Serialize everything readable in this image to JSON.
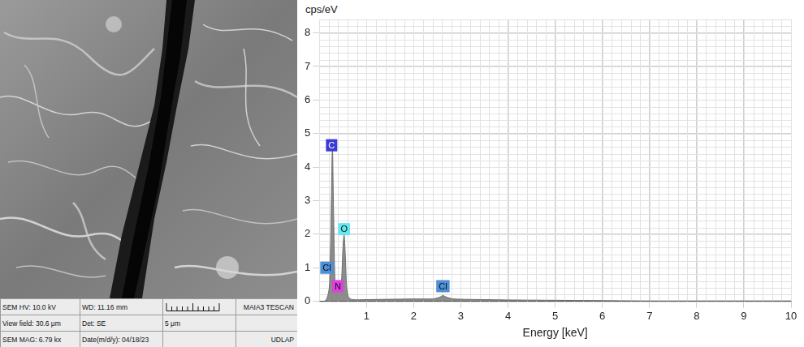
{
  "sem_image": {
    "info_bar": {
      "hv": "SEM HV: 10.0 kV",
      "wd": "WD: 11.16 mm",
      "instrument": "MAIA3 TESCAN",
      "view_field": "View field: 30.6 μm",
      "detector": "Det: SE",
      "scale_bar": "5 μm",
      "magnification": "SEM MAG: 6.79 kx",
      "date": "Date(m/d/y): 04/18/23",
      "institution": "UDLAP"
    }
  },
  "chart_data": {
    "type": "area",
    "y_label": "cps/eV",
    "x_label": "Energy [keV]",
    "x": [
      0.1,
      0.15,
      0.2,
      0.22,
      0.25,
      0.277,
      0.3,
      0.33,
      0.36,
      0.39,
      0.43,
      0.47,
      0.5,
      0.525,
      0.55,
      0.58,
      0.62,
      0.7,
      1.0,
      1.5,
      2.0,
      2.4,
      2.55,
      2.62,
      2.7,
      2.85,
      3.5,
      4.0,
      5.0,
      6.0,
      7.0,
      8.0,
      9.0,
      10.0
    ],
    "values": [
      0,
      0.05,
      0.3,
      0.6,
      2.5,
      4.6,
      2.8,
      0.6,
      0.3,
      0.35,
      0.3,
      0.6,
      1.6,
      2.0,
      1.4,
      0.4,
      0.12,
      0.05,
      0.05,
      0.06,
      0.07,
      0.07,
      0.12,
      0.17,
      0.12,
      0.07,
      0.05,
      0.04,
      0.03,
      0.02,
      0.01,
      0.01,
      0.01,
      0.01
    ],
    "color": "#8c8c8c",
    "xlim": [
      0,
      10
    ],
    "xticks": [
      1,
      2,
      3,
      4,
      5,
      6,
      7,
      8,
      9,
      10
    ],
    "ylim": [
      0,
      8.4
    ],
    "yticks": [
      0,
      1,
      2,
      3,
      4,
      5,
      6,
      7,
      8
    ],
    "grid": true,
    "peaks": [
      {
        "label": "C",
        "energy": 0.26,
        "height": 4.65,
        "color": "#3a3ad6"
      },
      {
        "label": "O",
        "energy": 0.525,
        "height": 2.15,
        "color": "#66e8f0"
      },
      {
        "label": "N",
        "energy": 0.39,
        "height": 0.45,
        "color": "#e03ee0"
      },
      {
        "label": "Cl",
        "energy": 0.16,
        "height": 1.0,
        "color": "#4f8fd6"
      },
      {
        "label": "Cl",
        "energy": 2.62,
        "height": 0.45,
        "color": "#4f8fd6"
      }
    ]
  }
}
